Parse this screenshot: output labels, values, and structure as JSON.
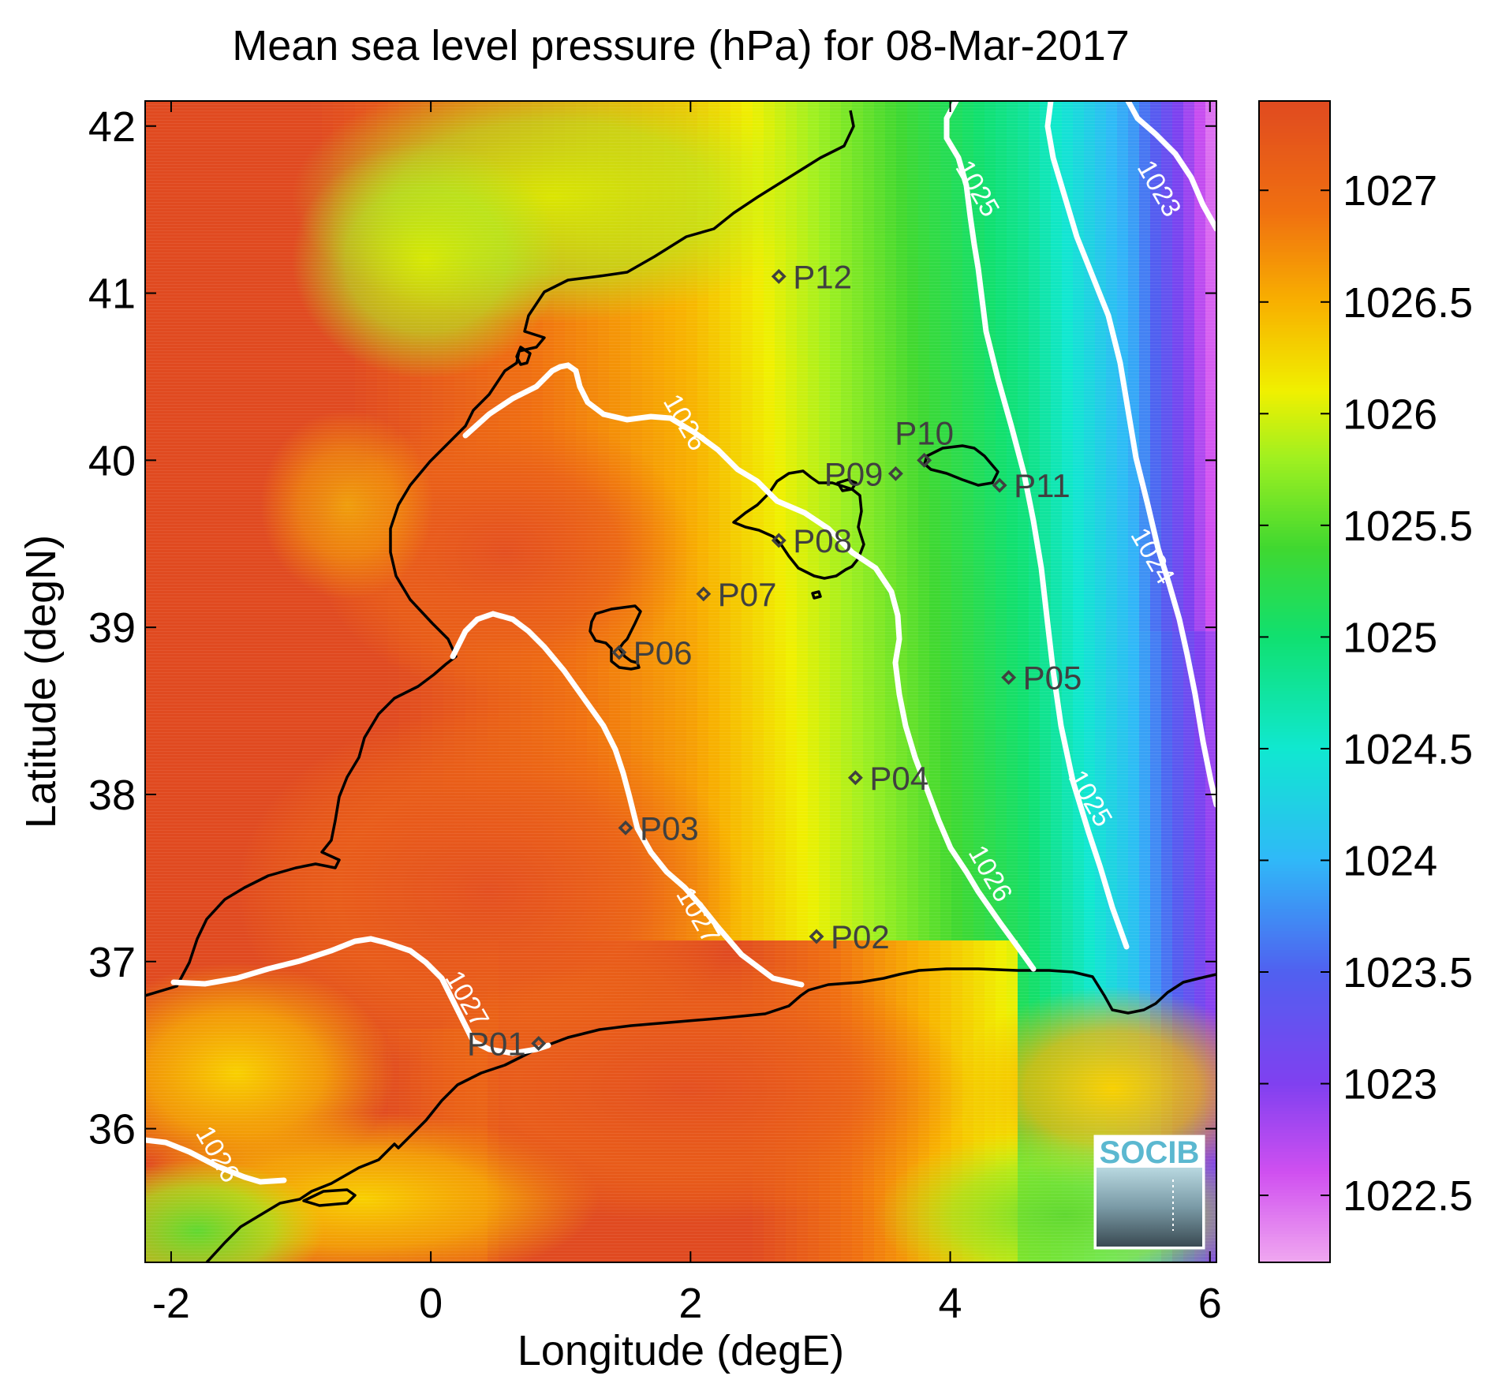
{
  "title": "Mean sea level pressure (hPa) for 08-Mar-2017",
  "axes": {
    "xlabel": "Longitude (degE)",
    "ylabel": "Latitude (degN)",
    "xlim": [
      -2.2,
      6.05
    ],
    "ylim": [
      35.2,
      42.15
    ],
    "xticks": [
      "-2",
      "0",
      "2",
      "4",
      "6"
    ],
    "yticks": [
      "42",
      "41",
      "40",
      "39",
      "38",
      "37",
      "36"
    ]
  },
  "colorbar": {
    "range": [
      1022.2,
      1027.4
    ],
    "ticks": [
      "1027",
      "1026.5",
      "1026",
      "1025.5",
      "1025",
      "1024.5",
      "1024",
      "1023.5",
      "1023",
      "1022.5"
    ],
    "tick_values": [
      1027,
      1026.5,
      1026,
      1025.5,
      1025,
      1024.5,
      1024,
      1023.5,
      1023,
      1022.5
    ],
    "colormap": [
      {
        "v": 1022.2,
        "c": "#f0a8f0"
      },
      {
        "v": 1022.6,
        "c": "#d050f0"
      },
      {
        "v": 1023.0,
        "c": "#8040f0"
      },
      {
        "v": 1023.5,
        "c": "#5060f0"
      },
      {
        "v": 1024.0,
        "c": "#30b8f8"
      },
      {
        "v": 1024.5,
        "c": "#10e8d0"
      },
      {
        "v": 1025.0,
        "c": "#10e070"
      },
      {
        "v": 1025.4,
        "c": "#40d830"
      },
      {
        "v": 1025.8,
        "c": "#a0f020"
      },
      {
        "v": 1026.1,
        "c": "#f0f000"
      },
      {
        "v": 1026.5,
        "c": "#f8b000"
      },
      {
        "v": 1026.9,
        "c": "#f07010"
      },
      {
        "v": 1027.4,
        "c": "#e04a20"
      }
    ]
  },
  "contour_labels": [
    {
      "text": "1025",
      "lon": 4.15,
      "lat": 41.6
    },
    {
      "text": "1023",
      "lon": 5.55,
      "lat": 41.6
    },
    {
      "text": "1026",
      "lon": 1.9,
      "lat": 40.2
    },
    {
      "text": "1024",
      "lon": 5.5,
      "lat": 39.4
    },
    {
      "text": "1025",
      "lon": 5.02,
      "lat": 37.95
    },
    {
      "text": "1026",
      "lon": 4.25,
      "lat": 37.5
    },
    {
      "text": "1027",
      "lon": 2.0,
      "lat": 37.25
    },
    {
      "text": "1027",
      "lon": 0.22,
      "lat": 36.75
    },
    {
      "text": "1026",
      "lon": -1.7,
      "lat": 35.82
    }
  ],
  "stations": [
    {
      "name": "P01",
      "lon": 0.83,
      "lat": 36.51,
      "label_side": "left"
    },
    {
      "name": "P02",
      "lon": 2.97,
      "lat": 37.15,
      "label_side": "right"
    },
    {
      "name": "P03",
      "lon": 1.5,
      "lat": 37.8,
      "label_side": "right"
    },
    {
      "name": "P04",
      "lon": 3.27,
      "lat": 38.1,
      "label_side": "right"
    },
    {
      "name": "P05",
      "lon": 4.45,
      "lat": 38.7,
      "label_side": "right"
    },
    {
      "name": "P06",
      "lon": 1.45,
      "lat": 38.85,
      "label_side": "right"
    },
    {
      "name": "P07",
      "lon": 2.1,
      "lat": 39.2,
      "label_side": "right"
    },
    {
      "name": "P08",
      "lon": 2.68,
      "lat": 39.52,
      "label_side": "right"
    },
    {
      "name": "P09",
      "lon": 3.58,
      "lat": 39.92,
      "label_side": "left"
    },
    {
      "name": "P10",
      "lon": 3.8,
      "lat": 40.0,
      "label_side": "above"
    },
    {
      "name": "P11",
      "lon": 4.38,
      "lat": 39.85,
      "label_side": "right"
    },
    {
      "name": "P12",
      "lon": 2.68,
      "lat": 41.1,
      "label_side": "right"
    }
  ],
  "logo": {
    "text": "SOCIB"
  }
}
